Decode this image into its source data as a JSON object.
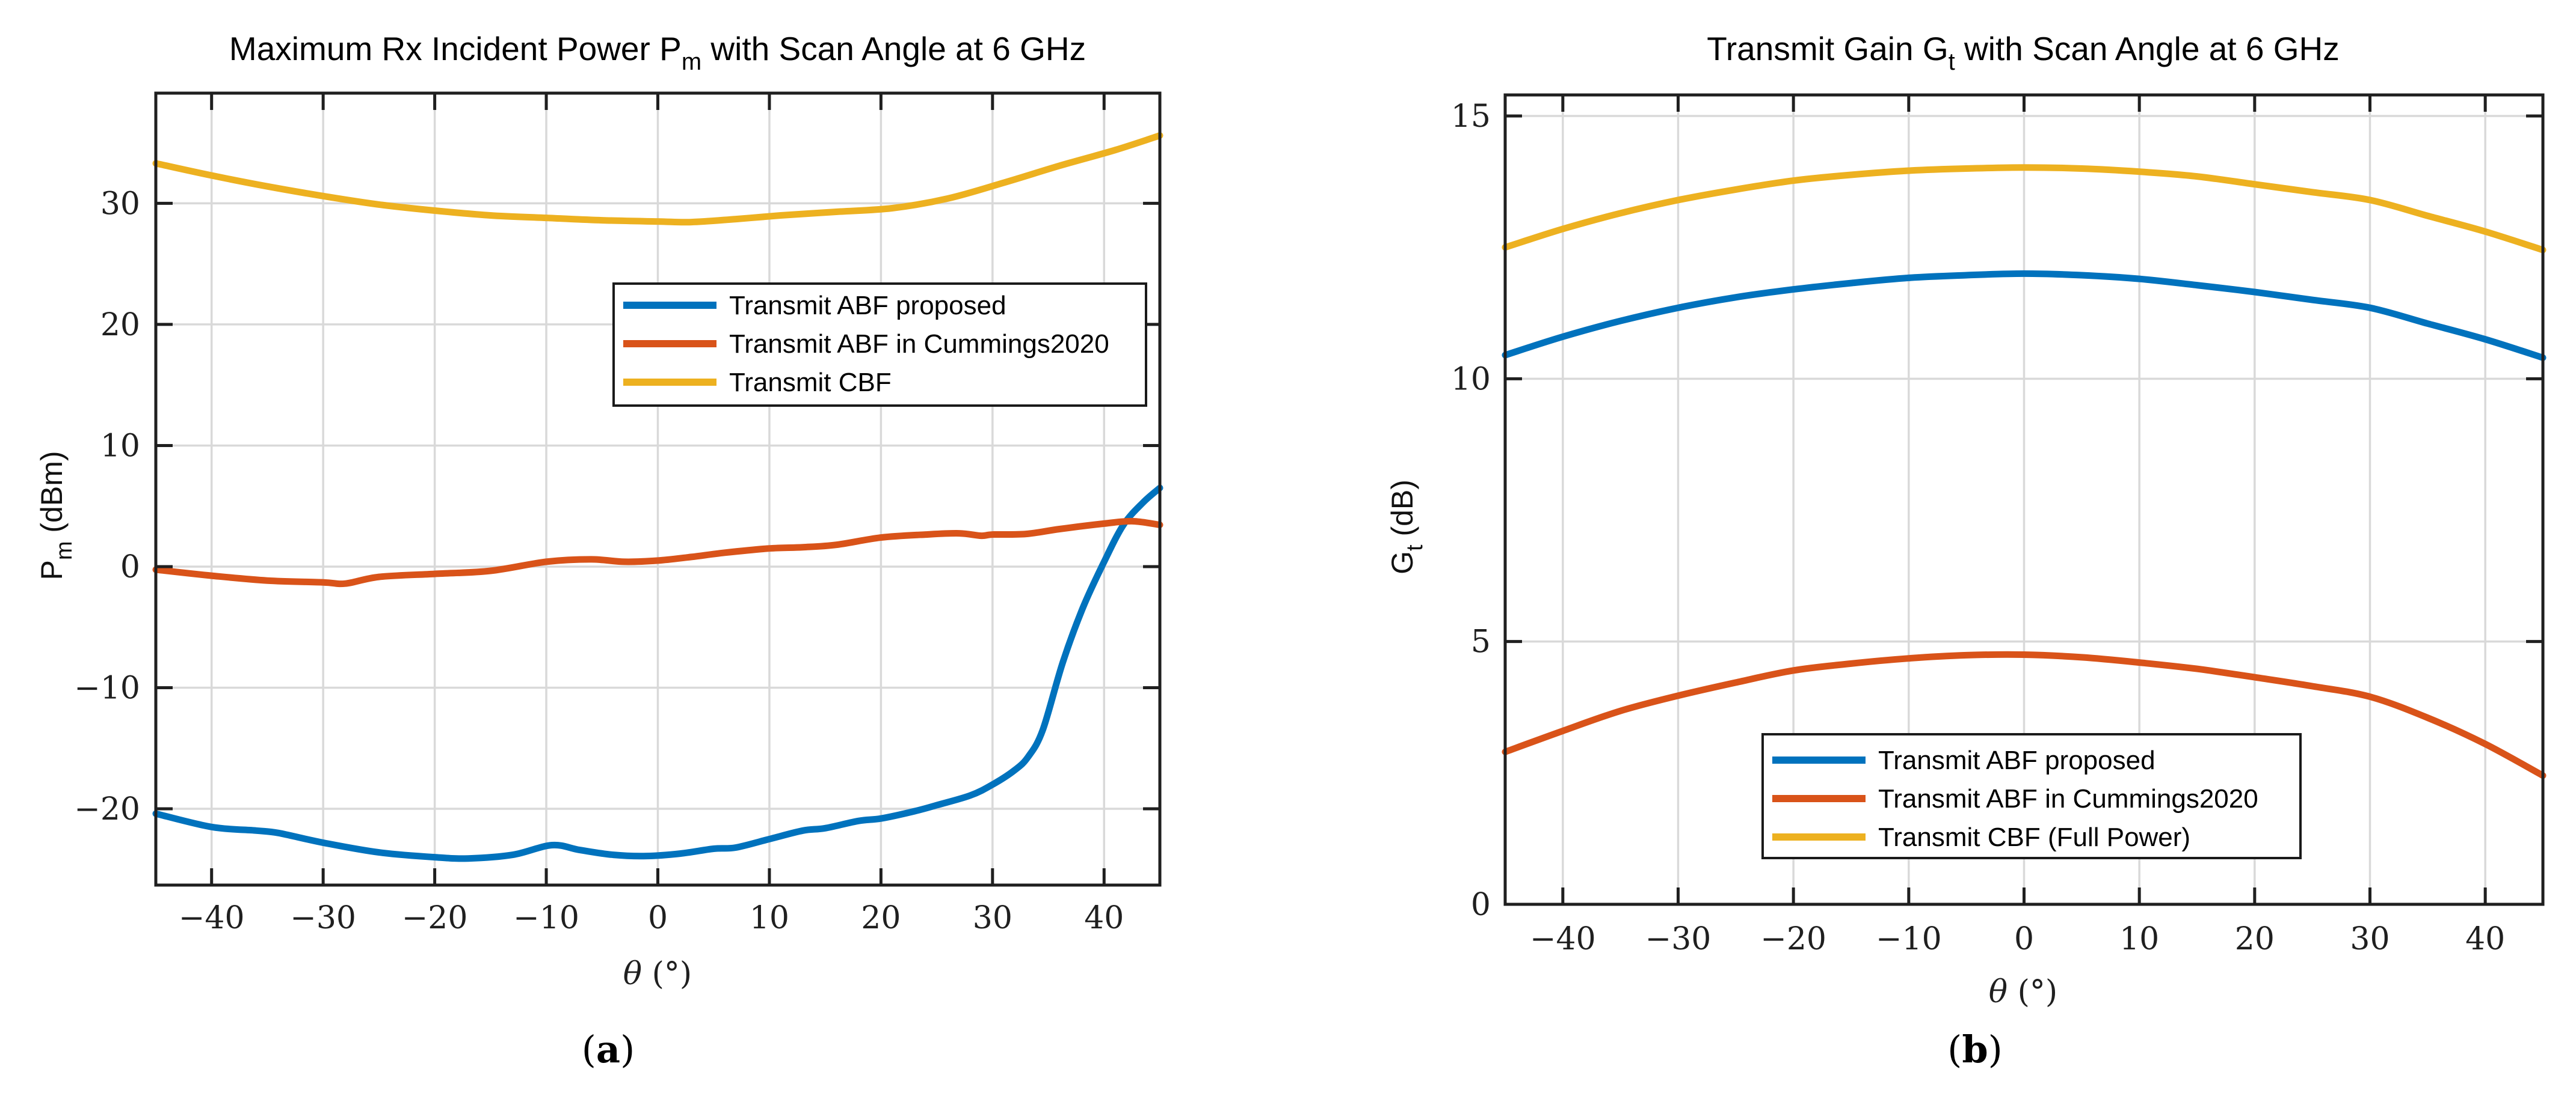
{
  "figure": {
    "background": "#ffffff",
    "style": {
      "grid_color": "#d9d9d9",
      "axis_color": "#1f1f1f",
      "series_colors": {
        "blue": "#0072BD",
        "orange": "#D95319",
        "yellow": "#EDB120"
      }
    }
  },
  "chart_data": [
    {
      "id": "a",
      "type": "line",
      "caption": {
        "pre": "(",
        "letter": "a",
        "post": ")"
      },
      "title": {
        "pre": "Maximum Rx Incident Power P",
        "sub": "m",
        "post": " with Scan Angle at 6 GHz"
      },
      "xlabel": {
        "symbol": "θ",
        "units": " (°)"
      },
      "ylabel": {
        "pre": "P",
        "sub": "m",
        "post": " (dBm)"
      },
      "xlim": [
        -45,
        45
      ],
      "ylim": [
        -26.3,
        39.1
      ],
      "xticks": [
        -40,
        -30,
        -20,
        -10,
        0,
        10,
        20,
        30,
        40
      ],
      "yticks": [
        -20,
        -10,
        0,
        10,
        20,
        30
      ],
      "grid": true,
      "legend_position": "upper center-right inside",
      "series": [
        {
          "name": "Transmit ABF proposed",
          "color": "#0072BD",
          "x": [
            -45,
            -40,
            -36,
            -34,
            -30,
            -25,
            -20,
            -17,
            -13,
            -9.5,
            -7,
            -4,
            -1,
            2,
            5,
            7,
            10,
            13,
            15,
            18,
            20,
            23,
            25,
            28,
            30,
            32,
            33.2,
            34.5,
            36.3,
            38.1,
            39.9,
            41.7,
            43.5,
            45
          ],
          "y": [
            -20.4,
            -21.5,
            -21.8,
            -22.0,
            -22.8,
            -23.6,
            -24.0,
            -24.1,
            -23.8,
            -23.0,
            -23.4,
            -23.8,
            -23.9,
            -23.7,
            -23.3,
            -23.2,
            -22.5,
            -21.8,
            -21.6,
            -21.0,
            -20.8,
            -20.2,
            -19.7,
            -18.9,
            -18.0,
            -16.8,
            -15.7,
            -13.5,
            -7.9,
            -3.4,
            0.2,
            3.4,
            5.3,
            6.5
          ]
        },
        {
          "name": "Transmit ABF in Cummings2020",
          "color": "#D95319",
          "x": [
            -45,
            -40,
            -35,
            -30,
            -28,
            -25,
            -20,
            -15,
            -10,
            -6,
            -3,
            0,
            3,
            6,
            10,
            13,
            16,
            20,
            24,
            27,
            29,
            30,
            33,
            36,
            40,
            42.5,
            45
          ],
          "y": [
            -0.25,
            -0.75,
            -1.15,
            -1.3,
            -1.4,
            -0.85,
            -0.6,
            -0.35,
            0.4,
            0.6,
            0.4,
            0.5,
            0.8,
            1.15,
            1.5,
            1.6,
            1.8,
            2.4,
            2.65,
            2.75,
            2.55,
            2.65,
            2.7,
            3.1,
            3.55,
            3.75,
            3.45
          ]
        },
        {
          "name": "Transmit CBF",
          "color": "#EDB120",
          "x": [
            -45,
            -40,
            -35,
            -30,
            -25,
            -20,
            -15,
            -10,
            -5,
            0,
            3,
            7,
            11,
            16,
            21,
            26,
            31,
            36,
            41,
            45
          ],
          "y": [
            33.3,
            32.3,
            31.4,
            30.6,
            29.9,
            29.4,
            29.0,
            28.8,
            28.6,
            28.5,
            28.45,
            28.7,
            29.0,
            29.3,
            29.6,
            30.4,
            31.7,
            33.1,
            34.4,
            35.6
          ]
        }
      ]
    },
    {
      "id": "b",
      "type": "line",
      "caption": {
        "pre": "(",
        "letter": "b",
        "post": ")"
      },
      "title": {
        "pre": "Transmit Gain G",
        "sub": "t",
        "post": " with Scan Angle at 6 GHz"
      },
      "xlabel": {
        "symbol": "θ",
        "units": " (°)"
      },
      "ylabel": {
        "pre": "G",
        "sub": "t",
        "post": " (dB)"
      },
      "xlim": [
        -45,
        45
      ],
      "ylim": [
        0,
        15.4
      ],
      "xticks": [
        -40,
        -30,
        -20,
        -10,
        0,
        10,
        20,
        30,
        40
      ],
      "yticks": [
        0,
        5,
        10,
        15
      ],
      "grid": true,
      "legend_position": "lower center inside",
      "series": [
        {
          "name": "Transmit ABF proposed",
          "color": "#0072BD",
          "x": [
            -45,
            -40,
            -35,
            -30,
            -25,
            -20,
            -15,
            -10,
            -5,
            0,
            5,
            10,
            15,
            20,
            25,
            30,
            35,
            40,
            45
          ],
          "y": [
            10.45,
            10.8,
            11.1,
            11.35,
            11.55,
            11.7,
            11.82,
            11.92,
            11.97,
            12.0,
            11.97,
            11.9,
            11.78,
            11.65,
            11.5,
            11.35,
            11.05,
            10.75,
            10.4
          ]
        },
        {
          "name": "Transmit ABF in Cummings2020",
          "color": "#D95319",
          "x": [
            -45,
            -40,
            -35,
            -30,
            -25,
            -20,
            -15,
            -10,
            -5,
            0,
            5,
            10,
            15,
            20,
            25,
            30,
            35,
            40,
            45
          ],
          "y": [
            2.9,
            3.3,
            3.68,
            3.97,
            4.22,
            4.45,
            4.58,
            4.68,
            4.74,
            4.75,
            4.7,
            4.6,
            4.48,
            4.32,
            4.15,
            3.95,
            3.55,
            3.05,
            2.45
          ]
        },
        {
          "name": "Transmit CBF (Full Power)",
          "color": "#EDB120",
          "x": [
            -45,
            -40,
            -35,
            -30,
            -25,
            -20,
            -15,
            -10,
            -5,
            0,
            5,
            10,
            15,
            20,
            25,
            30,
            35,
            40,
            45
          ],
          "y": [
            12.5,
            12.85,
            13.15,
            13.4,
            13.6,
            13.77,
            13.88,
            13.96,
            14.0,
            14.02,
            14.0,
            13.94,
            13.85,
            13.7,
            13.55,
            13.4,
            13.1,
            12.8,
            12.45
          ]
        }
      ]
    }
  ]
}
